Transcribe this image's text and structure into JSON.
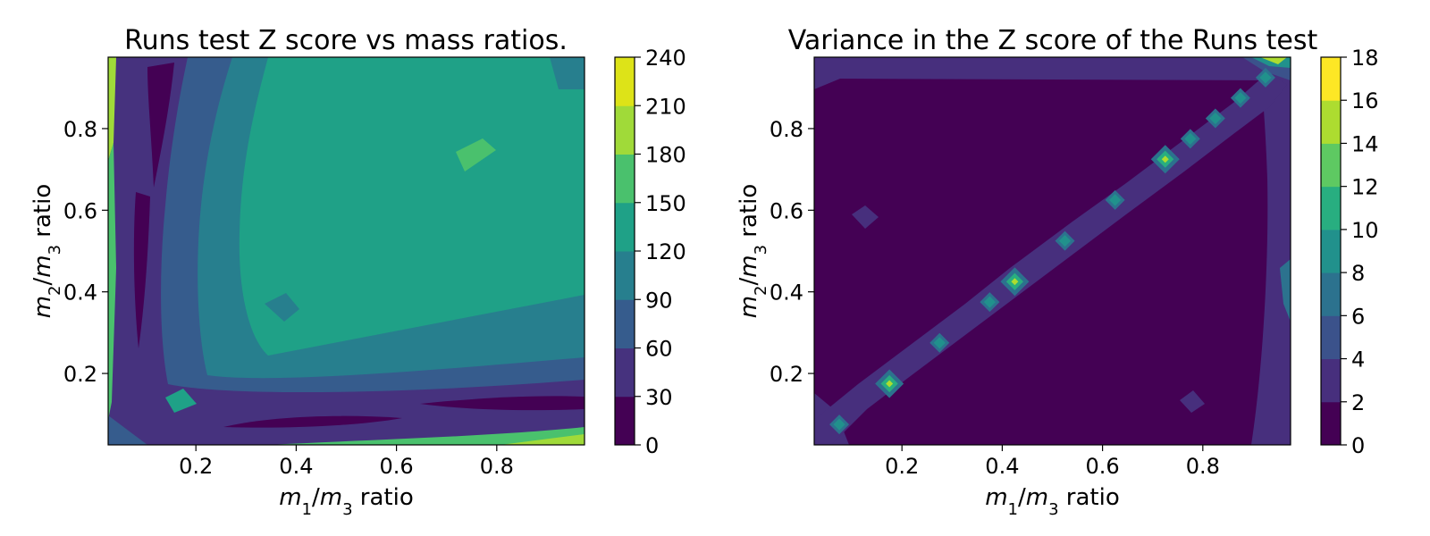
{
  "chart_data": [
    {
      "type": "heatmap",
      "subtype": "filled-contour",
      "title": "Runs test Z score vs mass ratios.",
      "xlabel": {
        "num": "m",
        "num_sub": "1",
        "sep": "/",
        "den": "m",
        "den_sub": "3",
        "suffix": "ratio"
      },
      "ylabel": {
        "num": "m",
        "num_sub": "2",
        "sep": "/",
        "den": "m",
        "den_sub": "3",
        "suffix": "ratio"
      },
      "xlim": [
        0.025,
        0.975
      ],
      "ylim": [
        0.025,
        0.975
      ],
      "xticks": [
        "0.2",
        "0.4",
        "0.6",
        "0.8"
      ],
      "yticks": [
        "0.2",
        "0.4",
        "0.6",
        "0.8"
      ],
      "colorbar": {
        "levels": [
          "0",
          "30",
          "60",
          "90",
          "120",
          "150",
          "180",
          "210",
          "240"
        ],
        "colors": [
          "#440154",
          "#46327e",
          "#365c8d",
          "#277f8e",
          "#1fa187",
          "#4ac16d",
          "#a0da39",
          "#dde318"
        ]
      },
      "grid": false,
      "cmap": "viridis",
      "description_values": {
        "center_plateau_level": "120-150",
        "low_ridge_x": 0.075,
        "low_ridge_y": 0.075
      }
    },
    {
      "type": "heatmap",
      "subtype": "filled-contour",
      "title": "Variance in the Z score of the Runs test",
      "xlabel": {
        "num": "m",
        "num_sub": "1",
        "sep": "/",
        "den": "m",
        "den_sub": "3",
        "suffix": "ratio"
      },
      "ylabel": {
        "num": "m",
        "num_sub": "2",
        "sep": "/",
        "den": "m",
        "den_sub": "3",
        "suffix": "ratio"
      },
      "xlim": [
        0.025,
        0.975
      ],
      "ylim": [
        0.025,
        0.975
      ],
      "xticks": [
        "0.2",
        "0.4",
        "0.6",
        "0.8"
      ],
      "yticks": [
        "0.2",
        "0.4",
        "0.6",
        "0.8"
      ],
      "colorbar": {
        "levels": [
          "0",
          "2",
          "4",
          "6",
          "8",
          "10",
          "12",
          "14",
          "16",
          "18"
        ],
        "colors": [
          "#440154",
          "#472f7d",
          "#3b528b",
          "#2c728e",
          "#21918c",
          "#28ae80",
          "#5ec962",
          "#addc30",
          "#fde725"
        ]
      },
      "grid": false,
      "cmap": "viridis",
      "description_values": {
        "background_level": "0-2",
        "diagonal_band": "m1 = m2",
        "hot_spots_x": [
          0.075,
          0.175,
          0.275,
          0.375,
          0.425,
          0.525,
          0.625,
          0.725,
          0.775,
          0.825,
          0.875,
          0.925
        ]
      }
    }
  ]
}
